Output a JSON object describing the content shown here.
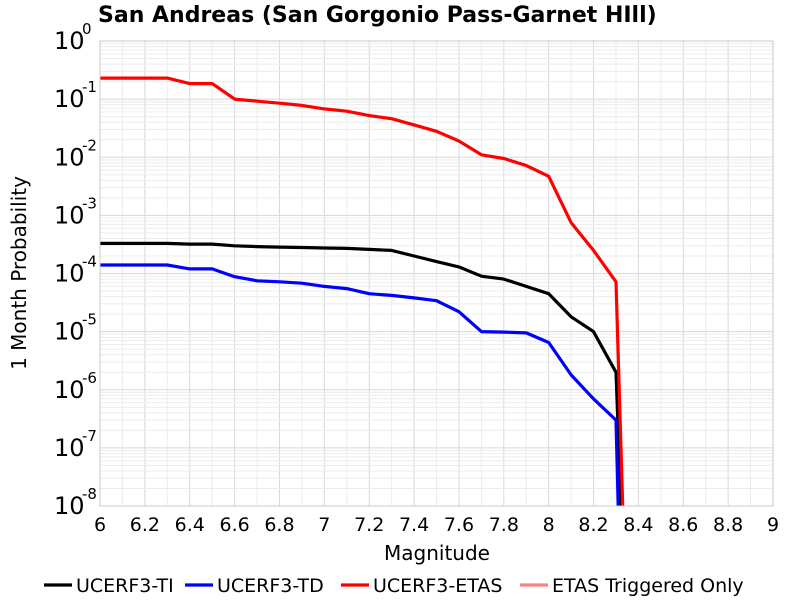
{
  "chart_data": {
    "type": "line",
    "title": "San Andreas (San Gorgonio Pass-Garnet HIll)",
    "xlabel": "Magnitude",
    "ylabel": "1 Month Probability",
    "xlim": [
      6,
      9
    ],
    "ylim": [
      1e-08,
      1
    ],
    "yscale": "log",
    "grid": true,
    "legend_position": "bottom",
    "x_ticks": [
      "6",
      "6.2",
      "6.4",
      "6.6",
      "6.8",
      "7",
      "7.2",
      "7.4",
      "7.6",
      "7.8",
      "8",
      "8.2",
      "8.4",
      "8.6",
      "8.8",
      "9"
    ],
    "y_ticks": [
      {
        "base": "10",
        "exp": "0"
      },
      {
        "base": "10",
        "exp": "-1"
      },
      {
        "base": "10",
        "exp": "-2"
      },
      {
        "base": "10",
        "exp": "-3"
      },
      {
        "base": "10",
        "exp": "-4"
      },
      {
        "base": "10",
        "exp": "-5"
      },
      {
        "base": "10",
        "exp": "-6"
      },
      {
        "base": "10",
        "exp": "-7"
      },
      {
        "base": "10",
        "exp": "-8"
      }
    ],
    "series": [
      {
        "name": "UCERF3-TI",
        "color": "#000000",
        "x": [
          6.0,
          6.1,
          6.2,
          6.3,
          6.4,
          6.5,
          6.6,
          6.7,
          6.8,
          6.9,
          7.0,
          7.1,
          7.2,
          7.3,
          7.4,
          7.5,
          7.6,
          7.7,
          7.8,
          7.9,
          8.0,
          8.1,
          8.2,
          8.3,
          8.31,
          8.32
        ],
        "y": [
          0.00033,
          0.00033,
          0.00033,
          0.00033,
          0.00032,
          0.00032,
          0.0003,
          0.00029,
          0.000285,
          0.00028,
          0.000275,
          0.00027,
          0.00026,
          0.00025,
          0.0002,
          0.00016,
          0.00013,
          9e-05,
          8e-05,
          6e-05,
          4.5e-05,
          1.8e-05,
          1e-05,
          2e-06,
          2e-07,
          1e-08
        ]
      },
      {
        "name": "UCERF3-TD",
        "color": "#0000ff",
        "x": [
          6.0,
          6.1,
          6.2,
          6.3,
          6.4,
          6.5,
          6.6,
          6.7,
          6.8,
          6.9,
          7.0,
          7.1,
          7.2,
          7.3,
          7.4,
          7.5,
          7.6,
          7.7,
          7.8,
          7.9,
          8.0,
          8.1,
          8.2,
          8.3,
          8.31
        ],
        "y": [
          0.00014,
          0.00014,
          0.00014,
          0.00014,
          0.00012,
          0.00012,
          8.8e-05,
          7.5e-05,
          7.2e-05,
          6.8e-05,
          6e-05,
          5.5e-05,
          4.5e-05,
          4.2e-05,
          3.8e-05,
          3.4e-05,
          2.2e-05,
          1e-05,
          9.8e-06,
          9.5e-06,
          6.5e-06,
          1.8e-06,
          7e-07,
          3e-07,
          1e-08
        ]
      },
      {
        "name": "UCERF3-ETAS",
        "color": "#ff0000",
        "x": [
          6.0,
          6.1,
          6.2,
          6.3,
          6.4,
          6.5,
          6.6,
          6.7,
          6.8,
          6.9,
          7.0,
          7.1,
          7.2,
          7.3,
          7.4,
          7.5,
          7.6,
          7.7,
          7.8,
          7.9,
          8.0,
          8.1,
          8.2,
          8.3,
          8.33
        ],
        "y": [
          0.23,
          0.23,
          0.23,
          0.23,
          0.185,
          0.185,
          0.1,
          0.092,
          0.085,
          0.078,
          0.068,
          0.062,
          0.052,
          0.046,
          0.036,
          0.028,
          0.019,
          0.011,
          0.0095,
          0.0072,
          0.0047,
          0.00075,
          0.00025,
          7.2e-05,
          1e-08
        ]
      },
      {
        "name": "ETAS Triggered Only",
        "color": "#ff8080",
        "x": [],
        "y": []
      }
    ]
  }
}
